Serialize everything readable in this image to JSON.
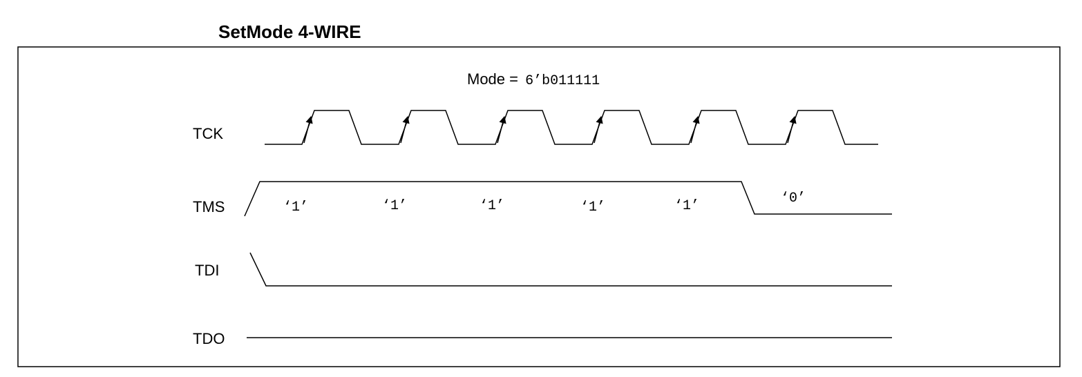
{
  "title": "SetMode 4-WIRE",
  "mode": {
    "label": "Mode = ",
    "value": "6’b011111"
  },
  "signals": [
    {
      "name": "TCK",
      "kind": "clock",
      "pulses": 6
    },
    {
      "name": "TMS",
      "kind": "bits",
      "bits": [
        "‘1’",
        "‘1’",
        "‘1’",
        "‘1’",
        "‘1’",
        "‘0’"
      ]
    },
    {
      "name": "TDI",
      "kind": "low"
    },
    {
      "name": "TDO",
      "kind": "flat"
    }
  ]
}
